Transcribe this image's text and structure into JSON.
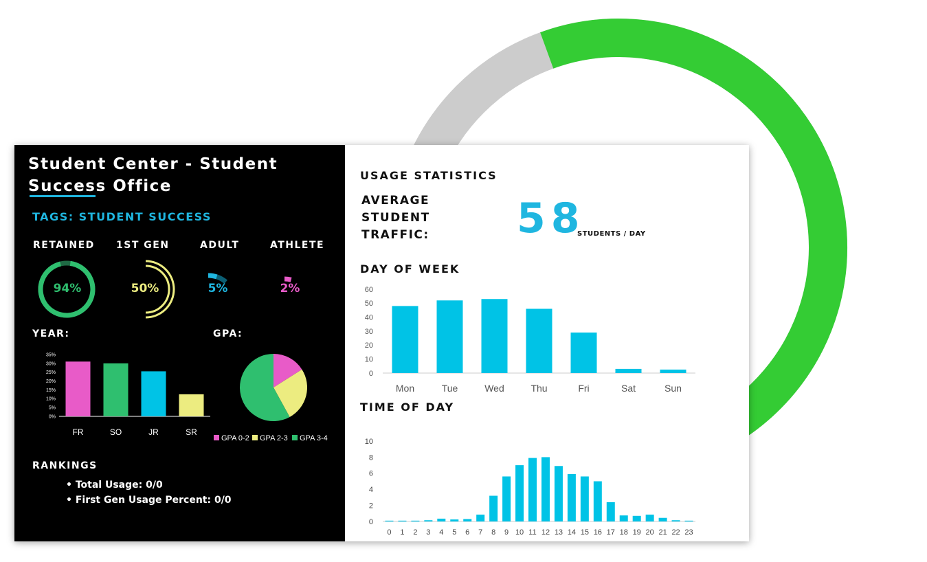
{
  "colors": {
    "green_ring": "#34cc34",
    "grey_ring": "#cccccc",
    "cyan": "#00c3e6",
    "pink": "#e85bc8",
    "emerald": "#2fbf6f",
    "yellow": "#ecec80",
    "dark_green": "#1f6a44"
  },
  "background_ring": {
    "value_percent": 85
  },
  "left_panel": {
    "title_line1": "Student Center - Student",
    "title_line2": "Success Office",
    "tags": "TAGS: STUDENT SUCCESS",
    "gauges": [
      {
        "label": "RETAINED",
        "value": "94%",
        "fraction": 0.94,
        "color": "#2fbf6f"
      },
      {
        "label": "1ST GEN",
        "value": "50%",
        "fraction": 0.5,
        "color": "#ecec80"
      },
      {
        "label": "ADULT",
        "value": "5%",
        "fraction": 0.05,
        "color": "#1fb6e0"
      },
      {
        "label": "ATHLETE",
        "value": "2%",
        "fraction": 0.02,
        "color": "#e85bc8"
      }
    ],
    "year_label": "YEAR:",
    "gpa_label": "GPA:",
    "rankings_label": "RANKINGS",
    "rankings": [
      "Total Usage: 0/0",
      "First Gen Usage Percent: 0/0"
    ]
  },
  "right_panel": {
    "usage_title": "USAGE STATISTICS",
    "avg_label_lines": [
      "AVERAGE",
      "STUDENT",
      "TRAFFIC:"
    ],
    "avg_value": "58",
    "avg_unit": "STUDENTS / DAY",
    "dow_title": "DAY OF WEEK",
    "tod_title": "TIME OF DAY"
  },
  "chart_data": [
    {
      "id": "year",
      "type": "bar",
      "categories": [
        "FR",
        "SO",
        "JR",
        "SR"
      ],
      "values": [
        31,
        30,
        25.5,
        12.5
      ],
      "colors": [
        "#e85bc8",
        "#2fbf6f",
        "#00c3e6",
        "#ecec80"
      ],
      "ylim": [
        0,
        35
      ],
      "yticks": [
        "0%",
        "5%",
        "10%",
        "15%",
        "20%",
        "25%",
        "30%",
        "35%"
      ]
    },
    {
      "id": "gpa",
      "type": "pie",
      "labels": [
        "GPA 0-2",
        "GPA 2-3",
        "GPA 3-4"
      ],
      "values": [
        16,
        26,
        58
      ],
      "colors": [
        "#e85bc8",
        "#ecec80",
        "#2fbf6f"
      ]
    },
    {
      "id": "dow",
      "type": "bar",
      "categories": [
        "Mon",
        "Tue",
        "Wed",
        "Thu",
        "Fri",
        "Sat",
        "Sun"
      ],
      "values": [
        48,
        52,
        53,
        46,
        29,
        3,
        2.5
      ],
      "ylim": [
        0,
        60
      ],
      "yticks": [
        "0",
        "10",
        "20",
        "30",
        "40",
        "50",
        "60"
      ]
    },
    {
      "id": "tod",
      "type": "bar",
      "categories": [
        "0",
        "1",
        "2",
        "3",
        "4",
        "5",
        "6",
        "7",
        "8",
        "9",
        "10",
        "11",
        "12",
        "13",
        "14",
        "15",
        "16",
        "17",
        "18",
        "19",
        "20",
        "21",
        "22",
        "23"
      ],
      "values": [
        0.1,
        0.1,
        0.1,
        0.15,
        0.35,
        0.25,
        0.3,
        0.85,
        3.2,
        5.6,
        7.0,
        7.9,
        8.0,
        6.9,
        5.9,
        5.6,
        5.0,
        2.4,
        0.75,
        0.7,
        0.85,
        0.45,
        0.15,
        0.1
      ],
      "ylim": [
        0,
        10
      ],
      "yticks": [
        "0",
        "2",
        "4",
        "6",
        "8",
        "10"
      ]
    }
  ]
}
